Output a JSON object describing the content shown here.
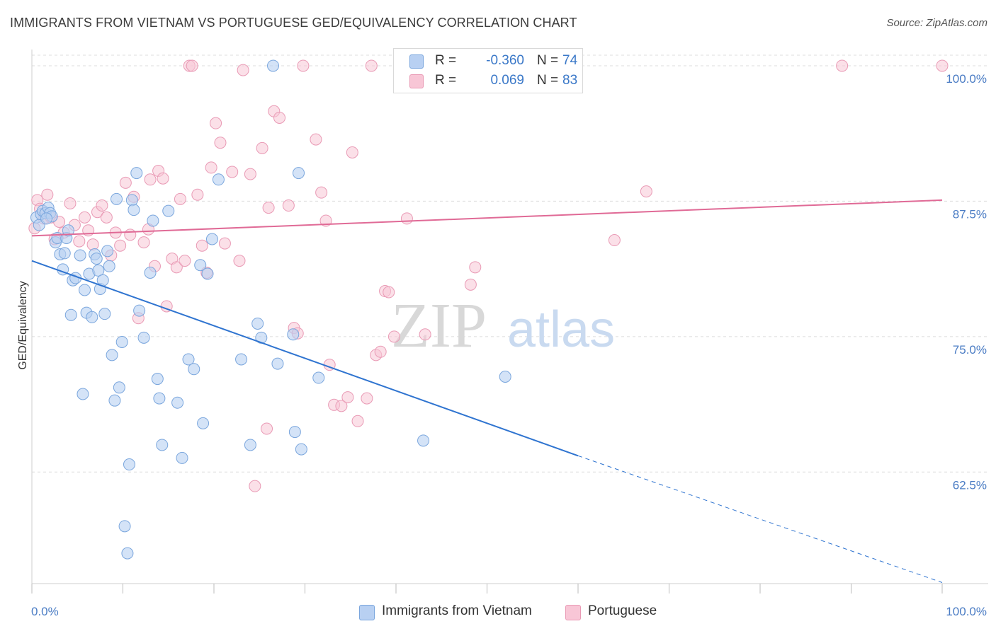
{
  "title": "IMMIGRANTS FROM VIETNAM VS PORTUGUESE GED/EQUIVALENCY CORRELATION CHART",
  "source": "Source: ZipAtlas.com",
  "watermark": {
    "zip": "ZIP",
    "atlas": "atlas"
  },
  "legend": {
    "r_label": "R =",
    "n_label": "N =",
    "rows": [
      {
        "r": "-0.360",
        "n": "74"
      },
      {
        "r": "0.069",
        "n": "83"
      }
    ]
  },
  "colors": {
    "vietnam_fill": "#b8d0f2",
    "vietnam_stroke": "#7aa6dd",
    "vietnam_line": "#2f74d0",
    "portuguese_fill": "#f8c6d6",
    "portuguese_stroke": "#e99ab5",
    "portuguese_line": "#e06a96",
    "tick_label": "#4a7cc4",
    "grid": "#dcdcdc"
  },
  "chart_data": {
    "type": "scatter",
    "ylabel": "GED/Equivalency",
    "xlabel": "",
    "xlim": [
      0,
      100
    ],
    "ylim": [
      52.2,
      101.5
    ],
    "y_ticks": [
      62.5,
      75.0,
      87.5,
      100.0
    ],
    "y_tick_labels": [
      "62.5%",
      "75.0%",
      "87.5%",
      "100.0%"
    ],
    "x_tick_labels": [
      "0.0%",
      "100.0%"
    ],
    "grid": "horizontal dashed",
    "legend_position": "top-center",
    "series": [
      {
        "name": "Immigrants from Vietnam",
        "trend": {
          "x0": 0,
          "y0": 82.0,
          "x1": 60,
          "y1": 64.0,
          "dashed_to_x": 100,
          "dashed_to_y": 52.3
        },
        "points": [
          [
            0.5,
            86.0
          ],
          [
            0.8,
            85.3
          ],
          [
            1.0,
            86.3
          ],
          [
            1.2,
            86.6
          ],
          [
            1.5,
            86.4
          ],
          [
            1.8,
            86.9
          ],
          [
            2.0,
            86.4
          ],
          [
            2.2,
            86.1
          ],
          [
            2.6,
            83.7
          ],
          [
            2.8,
            84.1
          ],
          [
            3.1,
            82.6
          ],
          [
            3.4,
            81.2
          ],
          [
            3.8,
            84.1
          ],
          [
            4.0,
            84.8
          ],
          [
            4.3,
            77.0
          ],
          [
            4.5,
            80.2
          ],
          [
            4.8,
            80.4
          ],
          [
            5.3,
            82.5
          ],
          [
            5.6,
            69.7
          ],
          [
            5.8,
            79.3
          ],
          [
            6.0,
            77.2
          ],
          [
            6.3,
            80.8
          ],
          [
            6.6,
            76.8
          ],
          [
            6.9,
            82.6
          ],
          [
            7.1,
            82.2
          ],
          [
            7.3,
            81.1
          ],
          [
            7.5,
            79.4
          ],
          [
            7.8,
            80.2
          ],
          [
            8.0,
            77.1
          ],
          [
            8.3,
            82.9
          ],
          [
            8.5,
            81.5
          ],
          [
            8.8,
            73.3
          ],
          [
            9.1,
            69.1
          ],
          [
            9.3,
            87.7
          ],
          [
            9.6,
            70.3
          ],
          [
            9.9,
            74.5
          ],
          [
            10.2,
            57.5
          ],
          [
            10.5,
            55.0
          ],
          [
            10.7,
            63.2
          ],
          [
            11.0,
            87.6
          ],
          [
            11.2,
            86.7
          ],
          [
            11.5,
            90.1
          ],
          [
            11.8,
            77.4
          ],
          [
            12.3,
            74.9
          ],
          [
            13.0,
            80.9
          ],
          [
            13.3,
            85.7
          ],
          [
            13.8,
            71.1
          ],
          [
            14.0,
            69.3
          ],
          [
            14.3,
            65.0
          ],
          [
            15.0,
            86.6
          ],
          [
            16.0,
            68.9
          ],
          [
            16.5,
            63.8
          ],
          [
            17.2,
            72.9
          ],
          [
            17.8,
            72.0
          ],
          [
            18.5,
            81.6
          ],
          [
            18.8,
            67.0
          ],
          [
            19.3,
            80.8
          ],
          [
            19.8,
            84.0
          ],
          [
            20.5,
            89.5
          ],
          [
            23.0,
            72.9
          ],
          [
            24.0,
            65.0
          ],
          [
            24.8,
            76.2
          ],
          [
            25.2,
            74.9
          ],
          [
            26.5,
            100.0
          ],
          [
            27.0,
            72.5
          ],
          [
            28.7,
            75.2
          ],
          [
            28.9,
            66.2
          ],
          [
            29.3,
            90.1
          ],
          [
            29.6,
            64.6
          ],
          [
            31.5,
            71.2
          ],
          [
            43.0,
            65.4
          ],
          [
            52.0,
            71.3
          ],
          [
            1.6,
            85.9
          ],
          [
            3.6,
            82.7
          ]
        ]
      },
      {
        "name": "Portuguese",
        "trend": {
          "x0": 0,
          "y0": 84.3,
          "x1": 100,
          "y1": 87.6
        },
        "points": [
          [
            0.3,
            85.0
          ],
          [
            0.6,
            87.6
          ],
          [
            0.9,
            86.8
          ],
          [
            1.3,
            85.9
          ],
          [
            1.7,
            88.1
          ],
          [
            2.1,
            86.0
          ],
          [
            2.5,
            84.0
          ],
          [
            3.0,
            85.6
          ],
          [
            3.5,
            84.6
          ],
          [
            4.2,
            87.3
          ],
          [
            4.7,
            85.3
          ],
          [
            5.2,
            83.8
          ],
          [
            5.8,
            86.0
          ],
          [
            6.2,
            84.8
          ],
          [
            6.7,
            83.5
          ],
          [
            7.2,
            86.5
          ],
          [
            7.7,
            87.1
          ],
          [
            8.2,
            86.0
          ],
          [
            8.7,
            82.5
          ],
          [
            9.2,
            84.6
          ],
          [
            9.7,
            83.4
          ],
          [
            10.3,
            89.2
          ],
          [
            10.8,
            84.4
          ],
          [
            11.2,
            87.9
          ],
          [
            11.7,
            76.7
          ],
          [
            12.3,
            83.7
          ],
          [
            12.8,
            84.9
          ],
          [
            13.0,
            89.5
          ],
          [
            13.5,
            81.5
          ],
          [
            13.9,
            90.3
          ],
          [
            14.4,
            89.6
          ],
          [
            14.8,
            77.8
          ],
          [
            15.4,
            82.2
          ],
          [
            15.9,
            81.4
          ],
          [
            16.3,
            87.7
          ],
          [
            16.8,
            82.0
          ],
          [
            17.3,
            100.0
          ],
          [
            17.6,
            100.0
          ],
          [
            18.2,
            88.1
          ],
          [
            18.7,
            83.4
          ],
          [
            19.2,
            80.9
          ],
          [
            19.7,
            90.6
          ],
          [
            20.2,
            94.7
          ],
          [
            20.7,
            92.9
          ],
          [
            21.2,
            83.6
          ],
          [
            22.0,
            90.2
          ],
          [
            22.8,
            82.0
          ],
          [
            23.2,
            99.6
          ],
          [
            24.0,
            90.0
          ],
          [
            25.3,
            92.4
          ],
          [
            26.0,
            86.9
          ],
          [
            26.6,
            95.8
          ],
          [
            27.2,
            95.2
          ],
          [
            28.2,
            87.1
          ],
          [
            28.8,
            75.8
          ],
          [
            29.2,
            75.3
          ],
          [
            29.8,
            100.0
          ],
          [
            31.2,
            93.2
          ],
          [
            31.8,
            88.3
          ],
          [
            32.3,
            85.7
          ],
          [
            32.7,
            72.4
          ],
          [
            33.2,
            68.7
          ],
          [
            34.0,
            68.6
          ],
          [
            34.7,
            69.4
          ],
          [
            35.2,
            92.0
          ],
          [
            35.8,
            67.2
          ],
          [
            36.8,
            69.3
          ],
          [
            37.3,
            100.0
          ],
          [
            37.8,
            73.3
          ],
          [
            38.3,
            73.6
          ],
          [
            38.8,
            79.2
          ],
          [
            39.2,
            79.1
          ],
          [
            39.8,
            75.0
          ],
          [
            41.2,
            85.9
          ],
          [
            43.2,
            75.2
          ],
          [
            48.2,
            79.8
          ],
          [
            48.7,
            81.4
          ],
          [
            64.0,
            83.9
          ],
          [
            67.5,
            88.4
          ],
          [
            89.0,
            100.0
          ],
          [
            100.0,
            100.0
          ],
          [
            24.5,
            61.2
          ],
          [
            25.8,
            66.5
          ]
        ]
      }
    ]
  },
  "bottom_legend": [
    "Immigrants from Vietnam",
    "Portuguese"
  ]
}
